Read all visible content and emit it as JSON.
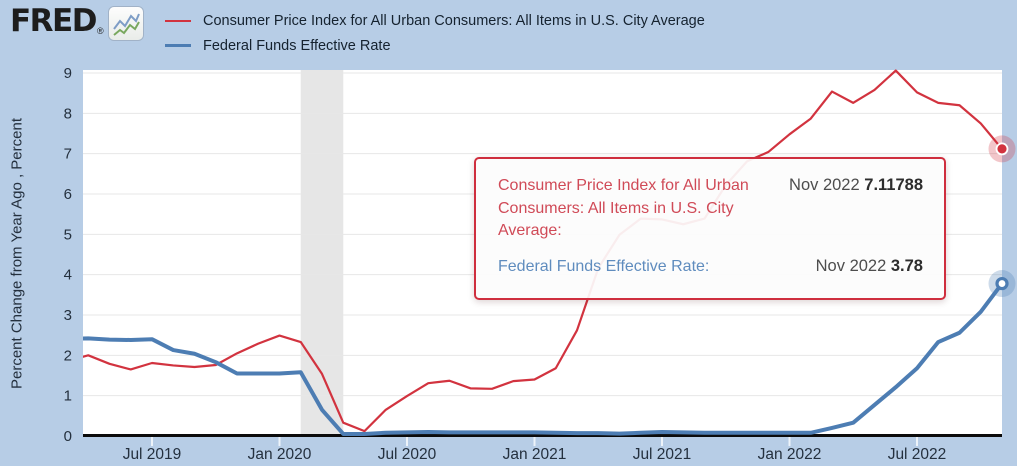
{
  "page": {
    "bg_color": "#b7cde6"
  },
  "header": {
    "brand": {
      "name": "FRED",
      "registered": "®",
      "icon": "line-chart-icon"
    },
    "legend": [
      {
        "label": "Consumer Price Index for All Urban Consumers: All Items in U.S. City Average",
        "color": "#d2333f"
      },
      {
        "label": "Federal Funds Effective Rate",
        "color": "#4d7db3"
      }
    ]
  },
  "tooltip": {
    "rows": [
      {
        "label": "Consumer Price Index for All Urban Consumers: All Items in U.S. City Average:",
        "label_color": "#d04a57",
        "date": "Nov 2022",
        "value": "7.11788"
      },
      {
        "label": "Federal Funds Effective Rate:",
        "label_color": "#5f8cbe",
        "date": "Nov 2022",
        "value": "3.78"
      }
    ]
  },
  "chart_data": {
    "type": "line",
    "title": "",
    "xlabel": "",
    "ylabel": "Percent Change from Year Ago , Percent",
    "ylim": [
      0,
      9
    ],
    "y_ticks": [
      0,
      1,
      2,
      3,
      4,
      5,
      6,
      7,
      8,
      9
    ],
    "x_tick_labels": [
      "Jul 2019",
      "Jan 2020",
      "Jul 2020",
      "Jan 2021",
      "Jul 2021",
      "Jan 2022",
      "Jul 2022"
    ],
    "grid": true,
    "legend_position": "top-left",
    "recession_band": {
      "from": "Feb 2020",
      "to": "Apr 2020",
      "color": "#e6e6e6"
    },
    "x": [
      "Mar 2019",
      "Apr 2019",
      "May 2019",
      "Jun 2019",
      "Jul 2019",
      "Aug 2019",
      "Sep 2019",
      "Oct 2019",
      "Nov 2019",
      "Dec 2019",
      "Jan 2020",
      "Feb 2020",
      "Mar 2020",
      "Apr 2020",
      "May 2020",
      "Jun 2020",
      "Jul 2020",
      "Aug 2020",
      "Sep 2020",
      "Oct 2020",
      "Nov 2020",
      "Dec 2020",
      "Jan 2021",
      "Feb 2021",
      "Mar 2021",
      "Apr 2021",
      "May 2021",
      "Jun 2021",
      "Jul 2021",
      "Aug 2021",
      "Sep 2021",
      "Oct 2021",
      "Nov 2021",
      "Dec 2021",
      "Jan 2022",
      "Feb 2022",
      "Mar 2022",
      "Apr 2022",
      "May 2022",
      "Jun 2022",
      "Jul 2022",
      "Aug 2022",
      "Sep 2022",
      "Oct 2022",
      "Nov 2022"
    ],
    "series": [
      {
        "name": "Consumer Price Index for All Urban Consumers: All Items in U.S. City Average",
        "color": "#d2333f",
        "line_width": 2.2,
        "marker": "dot",
        "last_label": "Nov 2022 7.11788",
        "values": [
          1.86,
          2.0,
          1.79,
          1.65,
          1.81,
          1.75,
          1.71,
          1.76,
          2.05,
          2.29,
          2.49,
          2.33,
          1.54,
          0.33,
          0.12,
          0.65,
          0.99,
          1.31,
          1.37,
          1.18,
          1.17,
          1.36,
          1.4,
          1.68,
          2.62,
          4.16,
          4.99,
          5.39,
          5.37,
          5.25,
          5.39,
          6.22,
          6.81,
          7.04,
          7.48,
          7.87,
          8.54,
          8.26,
          8.58,
          9.06,
          8.52,
          8.26,
          8.2,
          7.75,
          7.11788
        ]
      },
      {
        "name": "Federal Funds Effective Rate",
        "color": "#4d7db3",
        "line_width": 4,
        "marker": "ring",
        "last_label": "Nov 2022 3.78",
        "values": [
          2.41,
          2.42,
          2.39,
          2.38,
          2.4,
          2.13,
          2.04,
          1.83,
          1.55,
          1.55,
          1.55,
          1.58,
          0.65,
          0.05,
          0.05,
          0.08,
          0.09,
          0.1,
          0.09,
          0.09,
          0.09,
          0.09,
          0.09,
          0.08,
          0.07,
          0.07,
          0.06,
          0.08,
          0.1,
          0.09,
          0.08,
          0.08,
          0.08,
          0.08,
          0.08,
          0.08,
          0.2,
          0.33,
          0.77,
          1.21,
          1.68,
          2.33,
          2.56,
          3.08,
          3.78
        ]
      }
    ]
  }
}
